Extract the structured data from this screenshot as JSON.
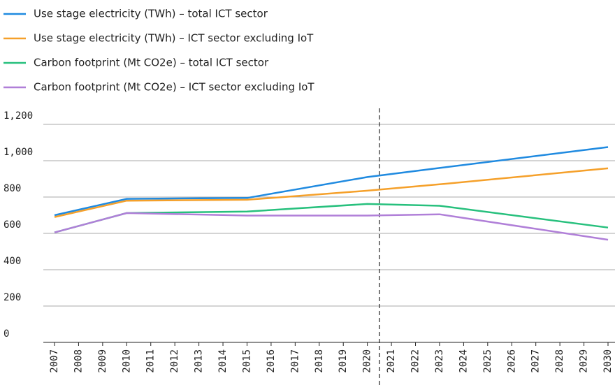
{
  "chart_data": {
    "type": "line",
    "x": [
      2007,
      2010,
      2015,
      2020,
      2023,
      2030
    ],
    "series": [
      {
        "name": "Use stage electricity (TWh) – total ICT sector",
        "color": "#1f8ae0",
        "values": [
          700,
          790,
          795,
          910,
          960,
          1075
        ]
      },
      {
        "name": "Use stage electricity (TWh) – ICT sector excluding IoT",
        "color": "#f5a02a",
        "values": [
          690,
          780,
          785,
          835,
          870,
          958
        ]
      },
      {
        "name": "Carbon footprint (Mt CO2e) – total ICT sector",
        "color": "#27c07d",
        "values": [
          605,
          712,
          720,
          762,
          752,
          632
        ]
      },
      {
        "name": "Carbon footprint (Mt CO2e) – ICT sector excluding IoT",
        "color": "#b07fd8",
        "values": [
          605,
          712,
          698,
          698,
          705,
          565
        ]
      }
    ],
    "xlim": [
      2007,
      2030
    ],
    "xticks": [
      2007,
      2008,
      2009,
      2010,
      2011,
      2012,
      2013,
      2014,
      2015,
      2016,
      2017,
      2018,
      2019,
      2020,
      2021,
      2022,
      2023,
      2024,
      2025,
      2026,
      2027,
      2028,
      2029,
      2030
    ],
    "ylim": [
      0,
      1200
    ],
    "yticks": [
      0,
      200,
      400,
      600,
      800,
      {
        "value": 1000,
        "label": "1,000"
      },
      {
        "value": 1200,
        "label": "1,200"
      }
    ],
    "grid": true,
    "legend": "top"
  }
}
